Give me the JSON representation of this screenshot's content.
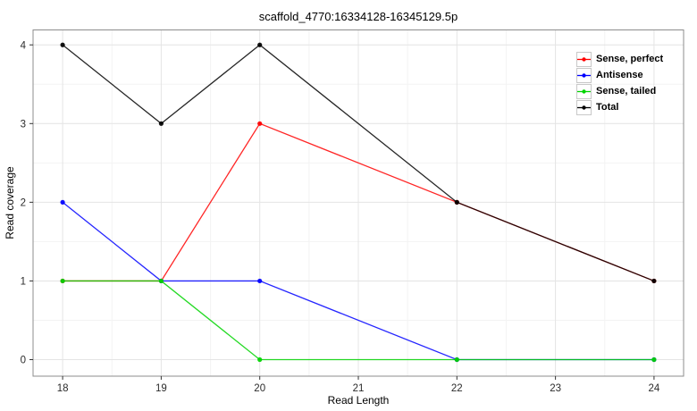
{
  "chart_data": {
    "type": "line",
    "title": "scaffold_4770:16334128-16345129.5p",
    "xlabel": "Read Length",
    "ylabel": "Read coverage",
    "x": [
      18,
      19,
      20,
      22,
      24
    ],
    "series": [
      {
        "name": "Sense, perfect",
        "color": "#FF0000",
        "values": [
          1,
          1,
          3,
          2,
          1
        ]
      },
      {
        "name": "Antisense",
        "color": "#0000FF",
        "values": [
          2,
          1,
          1,
          0,
          0
        ]
      },
      {
        "name": "Sense, tailed",
        "color": "#00D400",
        "values": [
          1,
          1,
          0,
          0,
          0
        ]
      },
      {
        "name": "Total",
        "color": "#000000",
        "values": [
          4,
          3,
          4,
          2,
          1
        ]
      }
    ],
    "x_ticks": [
      18,
      19,
      20,
      21,
      22,
      23,
      24
    ],
    "y_ticks": [
      0,
      1,
      2,
      3,
      4
    ],
    "x_minor_ticks": [
      18.5,
      19.5,
      20.5,
      21.5,
      22.5,
      23.5
    ],
    "y_minor_ticks": [
      0.5,
      1.5,
      2.5,
      3.5
    ],
    "xlim": [
      17.7,
      24.3
    ],
    "ylim": [
      -0.21,
      4.19
    ],
    "grid": "major-and-minor",
    "legend_position": "top-right-inside"
  },
  "colors": {
    "background": "#FFFFFF",
    "panel_border": "#8C8C8C",
    "grid_major": "#E4E4E4",
    "grid_minor": "#F3F3F3",
    "tick_mark": "#333333",
    "tick_label": "#2B2B2B",
    "legend_key_border": "#C8C8C8"
  }
}
